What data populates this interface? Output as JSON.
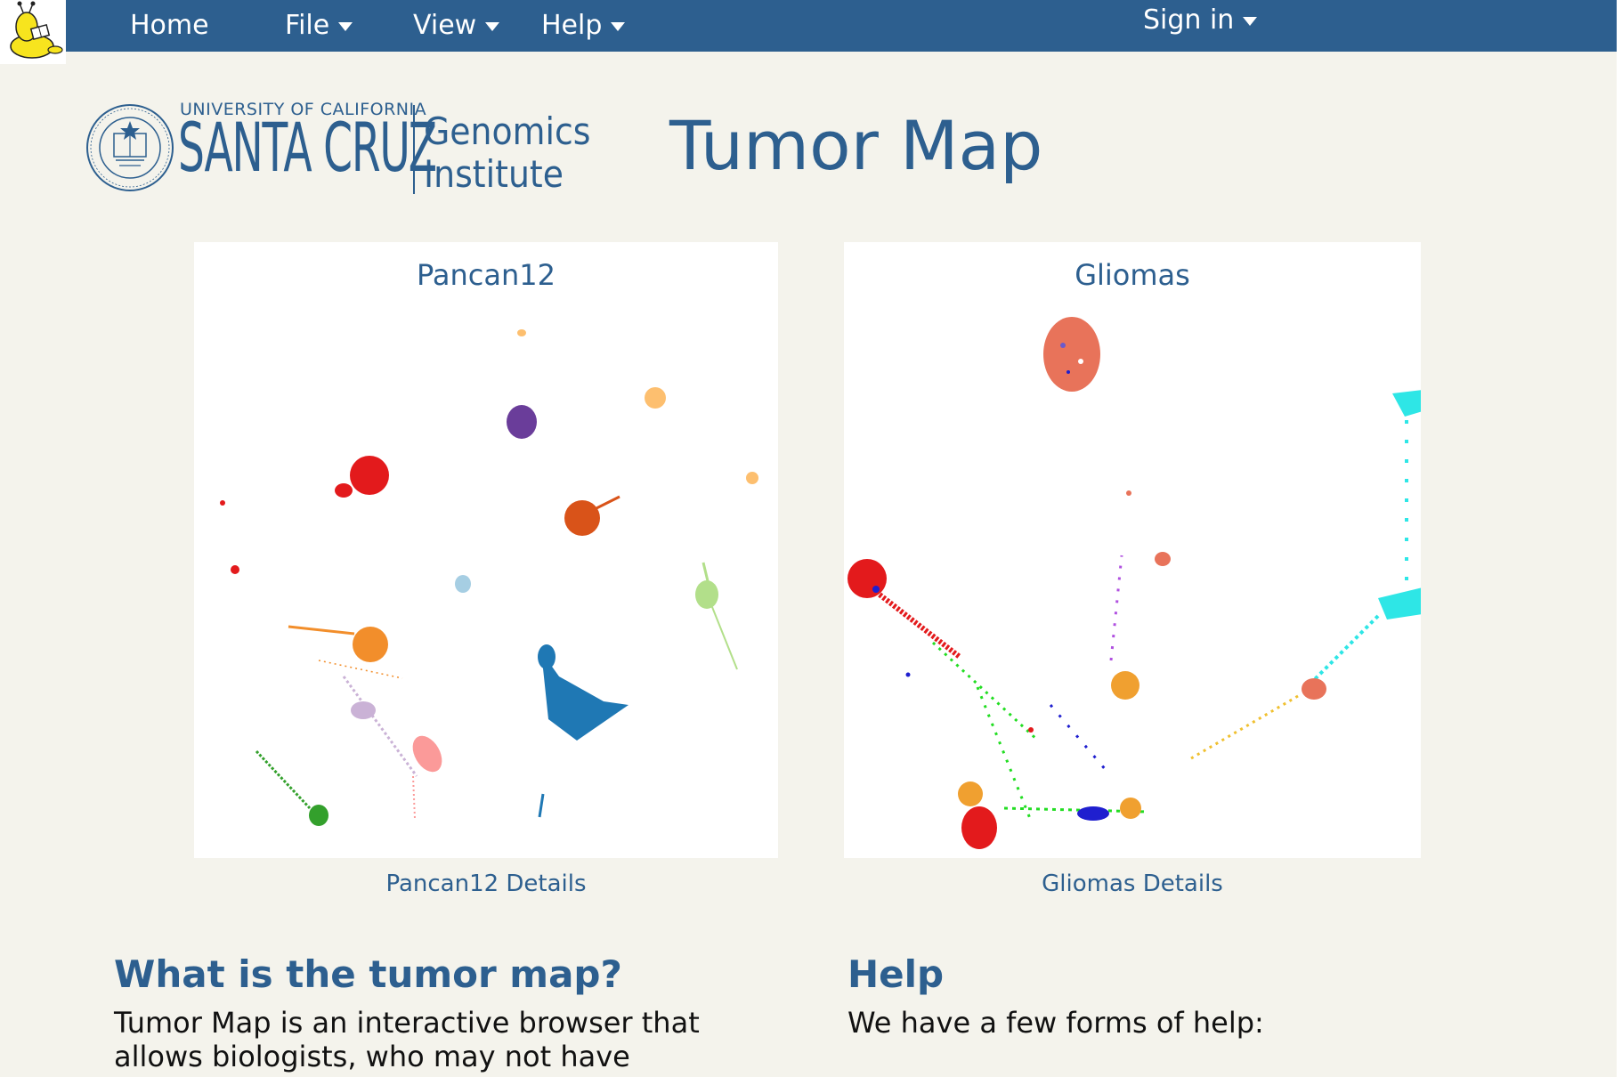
{
  "header": {
    "nav": [
      {
        "label": "Home",
        "dropdown": false
      },
      {
        "label": "File",
        "dropdown": true
      },
      {
        "label": "View",
        "dropdown": true
      },
      {
        "label": "Help",
        "dropdown": true
      }
    ],
    "signin_label": "Sign in"
  },
  "brand": {
    "line1": "UNIVERSITY OF CALIFORNIA",
    "line2": "SANTA CRUZ",
    "line3": "Genomics",
    "line4": "Institute",
    "seal_text": "THE UNIVERSITY OF CALIFORNIA 1868"
  },
  "page_title": "Tumor Map",
  "maps": [
    {
      "title": "Pancan12",
      "details_label": "Pancan12 Details"
    },
    {
      "title": "Gliomas",
      "details_label": "Gliomas Details"
    }
  ],
  "sections": {
    "about": {
      "heading": "What is the tumor map?",
      "text": "Tumor Map is an interactive browser that allows biologists, who may not have"
    },
    "help": {
      "heading": "Help",
      "text": "We have a few forms of help:"
    }
  },
  "colors": {
    "navbar": "#2d5f8f",
    "accent": "#2d5f8f",
    "background": "#f4f3ec"
  },
  "icons": {
    "corner_logo": "slug-reading-book-icon"
  }
}
